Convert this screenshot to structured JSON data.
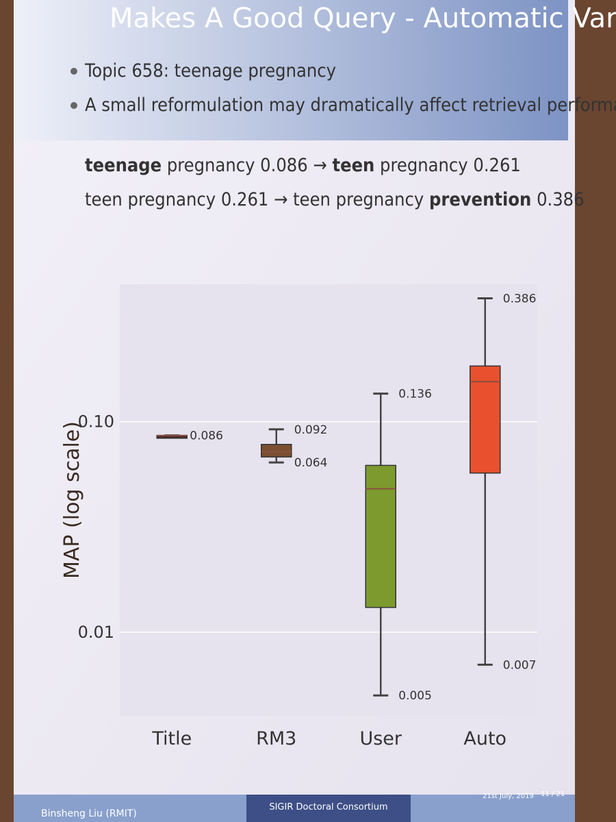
{
  "slide": {
    "title": "Makes A Good Query - Automatic Variations",
    "bullets": [
      "Topic 658: teenage pregnancy",
      "A small reformulation may dramatically affect retrieval performance"
    ],
    "lines": [
      [
        {
          "text": "teenage",
          "bold": true
        },
        {
          "text": " pregnancy 0.086 → ",
          "bold": false
        },
        {
          "text": "teen",
          "bold": true
        },
        {
          "text": " pregnancy 0.261",
          "bold": false
        }
      ],
      [
        {
          "text": "teen pregnancy 0.261 → teen pregnancy ",
          "bold": false
        },
        {
          "text": "prevention",
          "bold": true
        },
        {
          "text": " 0.386",
          "bold": false
        }
      ]
    ],
    "footer": {
      "author": "Binsheng Liu (RMIT)",
      "event": "SIGIR Doctoral Consortium",
      "date": "21st July, 2019",
      "page": "11 / 21"
    }
  },
  "chart_data": {
    "type": "box",
    "y_label": "MAP (log scale)",
    "log_y": true,
    "grid": true,
    "categories": [
      "Title",
      "RM3",
      "User",
      "Auto"
    ],
    "min": [
      0.086,
      0.064,
      0.005,
      0.007
    ],
    "q1": [
      0.086,
      0.068,
      0.0131,
      0.057
    ],
    "median": [
      0.086,
      0.072,
      0.048,
      0.155
    ],
    "q3": [
      0.086,
      0.078,
      0.062,
      0.184
    ],
    "max": [
      0.086,
      0.092,
      0.136,
      0.386
    ],
    "colors": [
      "#4a2a2a",
      "#7a5030",
      "#7d9a2e",
      "#e8502e"
    ],
    "labeled": [
      [
        "max"
      ],
      [
        "max",
        "min"
      ],
      [
        "max",
        "min"
      ],
      [
        "max",
        "min"
      ]
    ],
    "ylim": [
      0.004,
      0.45
    ],
    "yticks": [
      0.01,
      {
        "value": 0.1,
        "label": "0.10"
      }
    ]
  }
}
